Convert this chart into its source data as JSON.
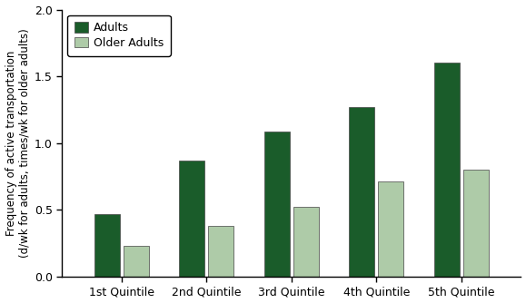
{
  "categories": [
    "1st Quintile",
    "2nd Quintile",
    "3rd Quintile",
    "4th Quintile",
    "5th Quintile"
  ],
  "adults": [
    0.47,
    0.87,
    1.09,
    1.27,
    1.6
  ],
  "older_adults": [
    0.23,
    0.38,
    0.52,
    0.71,
    0.8
  ],
  "adults_color": "#1a5c2a",
  "older_adults_color": "#aecba8",
  "adults_label": "Adults",
  "older_adults_label": "Older Adults",
  "ylabel_line1": "Frequency of active transportation",
  "ylabel_line2": "(d/wk for adults, times/wk for older adults)",
  "ylim": [
    0,
    2.0
  ],
  "yticks": [
    0.0,
    0.5,
    1.0,
    1.5,
    2.0
  ],
  "bar_width": 0.3,
  "edge_color": "#444444",
  "background_color": "#ffffff",
  "tick_fontsize": 9,
  "ylabel_fontsize": 8.5,
  "legend_fontsize": 9
}
